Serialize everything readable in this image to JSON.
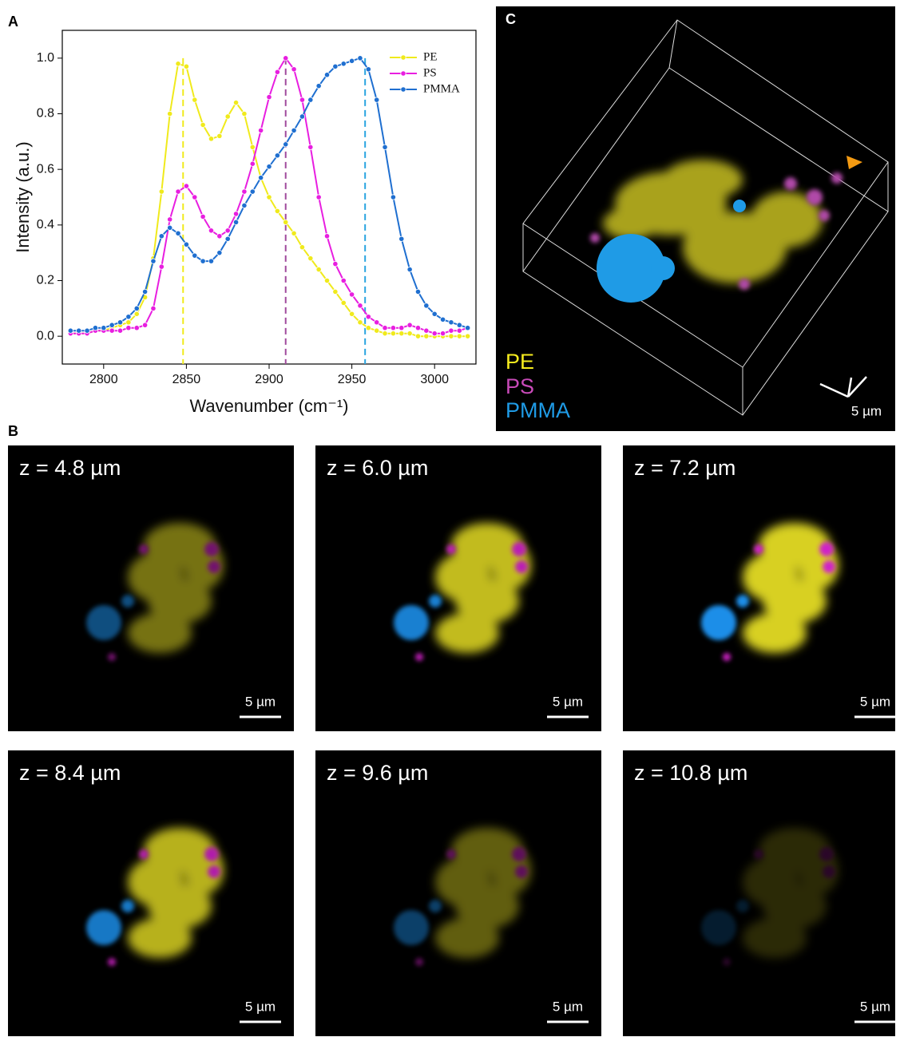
{
  "chart_data": {
    "type": "line",
    "y_label": "Intensity (a.u.)",
    "x_label": "Wavenumber (cm⁻¹)",
    "x": [
      2780,
      2785,
      2790,
      2795,
      2800,
      2805,
      2810,
      2815,
      2820,
      2825,
      2830,
      2835,
      2840,
      2845,
      2850,
      2855,
      2860,
      2865,
      2870,
      2875,
      2880,
      2885,
      2890,
      2895,
      2900,
      2905,
      2910,
      2915,
      2920,
      2925,
      2930,
      2935,
      2940,
      2945,
      2950,
      2955,
      2960,
      2965,
      2970,
      2975,
      2980,
      2985,
      2990,
      2995,
      3000,
      3005,
      3010,
      3015,
      3020
    ],
    "series": [
      {
        "name": "PE",
        "color": "#f0ea1c",
        "values": [
          0.01,
          0.01,
          0.01,
          0.02,
          0.02,
          0.03,
          0.04,
          0.05,
          0.08,
          0.14,
          0.28,
          0.52,
          0.8,
          0.98,
          0.97,
          0.85,
          0.76,
          0.71,
          0.72,
          0.79,
          0.84,
          0.8,
          0.68,
          0.57,
          0.5,
          0.45,
          0.41,
          0.37,
          0.32,
          0.28,
          0.24,
          0.2,
          0.16,
          0.12,
          0.08,
          0.05,
          0.03,
          0.02,
          0.01,
          0.01,
          0.01,
          0.01,
          0,
          0,
          0,
          0,
          0,
          0,
          0
        ]
      },
      {
        "name": "PS",
        "color": "#e81ee0",
        "values": [
          0.01,
          0.01,
          0.01,
          0.02,
          0.02,
          0.02,
          0.02,
          0.03,
          0.03,
          0.04,
          0.1,
          0.25,
          0.42,
          0.52,
          0.54,
          0.5,
          0.43,
          0.38,
          0.36,
          0.38,
          0.44,
          0.52,
          0.62,
          0.74,
          0.86,
          0.95,
          1.0,
          0.96,
          0.85,
          0.68,
          0.5,
          0.36,
          0.26,
          0.2,
          0.15,
          0.11,
          0.07,
          0.05,
          0.03,
          0.03,
          0.03,
          0.04,
          0.03,
          0.02,
          0.01,
          0.01,
          0.02,
          0.02,
          0.03
        ]
      },
      {
        "name": "PMMA",
        "color": "#1f6fd0",
        "values": [
          0.02,
          0.02,
          0.02,
          0.03,
          0.03,
          0.04,
          0.05,
          0.07,
          0.1,
          0.16,
          0.27,
          0.36,
          0.39,
          0.37,
          0.33,
          0.29,
          0.27,
          0.27,
          0.3,
          0.35,
          0.41,
          0.47,
          0.52,
          0.57,
          0.61,
          0.65,
          0.69,
          0.74,
          0.79,
          0.85,
          0.9,
          0.94,
          0.97,
          0.98,
          0.99,
          1.0,
          0.96,
          0.85,
          0.68,
          0.5,
          0.35,
          0.24,
          0.16,
          0.11,
          0.08,
          0.06,
          0.05,
          0.04,
          0.03
        ]
      }
    ],
    "vlines": [
      {
        "x": 2848,
        "color": "#f0ea1c"
      },
      {
        "x": 2910,
        "color": "#a04a9c"
      },
      {
        "x": 2958,
        "color": "#2aa5e0"
      }
    ],
    "xlim": [
      2775,
      3025
    ],
    "ylim": [
      -0.1,
      1.1
    ],
    "xticks": [
      2800,
      2850,
      2900,
      2950,
      3000
    ],
    "yticks": [
      {
        "value": 0,
        "label": "0.0"
      },
      0.2,
      0.4,
      0.6,
      0.8,
      {
        "value": 1,
        "label": "1.0"
      }
    ],
    "legend": "upper right"
  },
  "panel_labels": [
    "A",
    "B",
    "C"
  ],
  "panel_c": {
    "legend": [
      "PE",
      "PS",
      "PMMA"
    ],
    "scale_bar": "5 µm"
  },
  "panel_b": {
    "slices": [
      {
        "z": "z = 4.8 µm",
        "scale_bar": "5 µm"
      },
      {
        "z": "z = 6.0 µm",
        "scale_bar": "5 µm"
      },
      {
        "z": "z = 7.2 µm",
        "scale_bar": "5 µm"
      },
      {
        "z": "z = 8.4 µm",
        "scale_bar": "5 µm"
      },
      {
        "z": "z = 9.6 µm",
        "scale_bar": "5 µm"
      },
      {
        "z": "z = 10.8 µm",
        "scale_bar": "5 µm"
      }
    ]
  }
}
